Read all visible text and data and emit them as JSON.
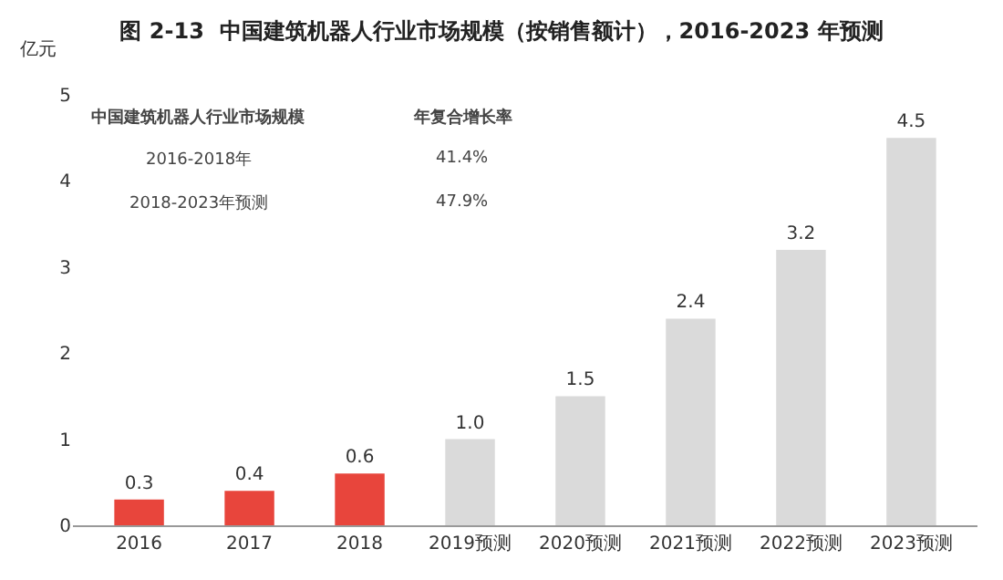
{
  "chart_data": {
    "type": "bar",
    "title": "图 2-13  中国建筑机器人行业市场规模（按销售额计），2016-2023 年预测",
    "ylabel": "亿元",
    "categories": [
      "2016",
      "2017",
      "2018",
      "2019预测",
      "2020预测",
      "2021预测",
      "2022预测",
      "2023预测"
    ],
    "values": [
      0.3,
      0.4,
      0.6,
      1.0,
      1.5,
      2.4,
      3.2,
      4.5
    ],
    "colors": [
      "#e8453c",
      "#e8453c",
      "#e8453c",
      "#dadada",
      "#dadada",
      "#dadada",
      "#dadada",
      "#dadada"
    ],
    "value_labels": [
      "0.3",
      "0.4",
      "0.6",
      "1.0",
      "1.5",
      "2.4",
      "3.2",
      "4.5"
    ],
    "ylim": [
      0,
      5
    ],
    "yticks": [
      0,
      1,
      2,
      3,
      4,
      5
    ],
    "annotations": [
      "中国建筑机器人行业市场规模",
      "年复合增长率",
      "2016-2018年",
      "41.4%",
      "2018-2023年预测",
      "47.9%"
    ]
  }
}
